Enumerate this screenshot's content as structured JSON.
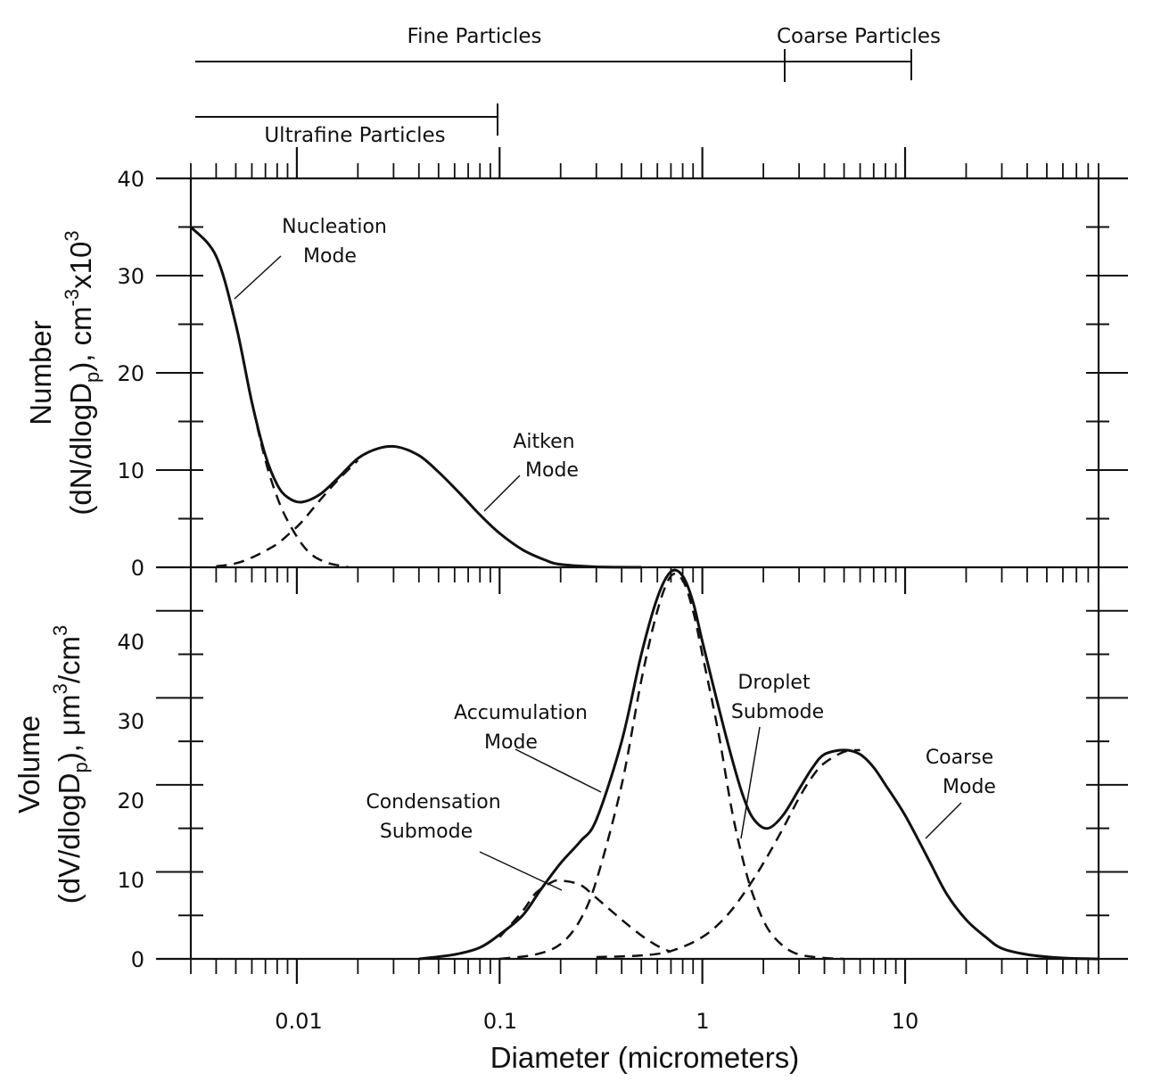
{
  "chart_data": [
    {
      "type": "line",
      "panel": "top",
      "x_scale": "log",
      "xlim": [
        0.003,
        90
      ],
      "ylim": [
        0,
        40
      ],
      "yticks": [
        0,
        10,
        20,
        30,
        40
      ],
      "ylabel_line1": "Number",
      "ylabel_line2": "(dN/dlogD",
      "ylabel_sub": "p",
      "ylabel_rest": "), cm",
      "ylabel_sup1": "-3",
      "ylabel_mid": "x10",
      "ylabel_sup2": "3",
      "series": [
        {
          "style": "solid",
          "x": [
            0.003,
            0.004,
            0.005,
            0.006,
            0.007,
            0.008,
            0.009,
            0.0105,
            0.013,
            0.016,
            0.02,
            0.025,
            0.031,
            0.04,
            0.05,
            0.065,
            0.08,
            0.1,
            0.13,
            0.17,
            0.2,
            0.3,
            0.5
          ],
          "y": [
            35,
            32,
            25,
            17,
            11.5,
            8.5,
            7.2,
            6.7,
            7.5,
            9.2,
            11.2,
            12.2,
            12.4,
            11.5,
            9.8,
            7.4,
            5.4,
            3.5,
            1.8,
            0.7,
            0.3,
            0.05,
            0
          ]
        },
        {
          "style": "dashed",
          "x": [
            0.003,
            0.004,
            0.005,
            0.006,
            0.007,
            0.008,
            0.009,
            0.0105,
            0.012,
            0.014,
            0.016,
            0.018
          ],
          "y": [
            35,
            32,
            25,
            17,
            11,
            7.2,
            4.8,
            2.5,
            1.2,
            0.5,
            0.2,
            0
          ]
        },
        {
          "style": "dashed",
          "x": [
            0.004,
            0.005,
            0.006,
            0.007,
            0.008,
            0.009,
            0.0105,
            0.013,
            0.016,
            0.02
          ],
          "y": [
            0.1,
            0.4,
            1.0,
            1.7,
            2.4,
            3.3,
            4.6,
            6.9,
            9.0,
            11.0
          ]
        }
      ],
      "annotations": [
        {
          "lines": [
            "Nucleation",
            "Mode"
          ]
        },
        {
          "lines": [
            "Aitken",
            "Mode"
          ]
        }
      ]
    },
    {
      "type": "line",
      "panel": "bottom",
      "x_scale": "log",
      "xlim": [
        0.003,
        90
      ],
      "ylim": [
        0,
        45
      ],
      "yticks": [
        0,
        10,
        20,
        30,
        40
      ],
      "ylabel_line1": "Volume",
      "ylabel_line2": "(dV/dlogD",
      "ylabel_sub": "p",
      "ylabel_rest": "), μm",
      "ylabel_sup1": "3",
      "ylabel_mid": "/cm",
      "ylabel_sup2": "3",
      "series": [
        {
          "style": "solid",
          "x": [
            0.04,
            0.06,
            0.08,
            0.1,
            0.13,
            0.16,
            0.2,
            0.25,
            0.3,
            0.4,
            0.5,
            0.6,
            0.7,
            0.8,
            0.9,
            1.0,
            1.2,
            1.4,
            1.6,
            1.8,
            2.1,
            2.5,
            3,
            3.5,
            4,
            5,
            6,
            7,
            8,
            10,
            13,
            16,
            20,
            25,
            30,
            40,
            60,
            90
          ],
          "y": [
            0,
            0.5,
            1.3,
            2.8,
            5,
            8,
            11,
            13.5,
            16,
            25,
            35,
            41.5,
            44.5,
            44,
            41,
            36.5,
            29,
            23,
            18.5,
            16,
            15,
            16.5,
            19.5,
            22,
            23.5,
            24,
            23.5,
            22,
            20,
            16.5,
            11.5,
            7.5,
            4.5,
            2.5,
            1.2,
            0.5,
            0.1,
            0
          ]
        },
        {
          "style": "dashed",
          "x": [
            0.1,
            0.13,
            0.15,
            0.18,
            0.2,
            0.25,
            0.3,
            0.4,
            0.5,
            0.6,
            0.7
          ],
          "y": [
            2.5,
            5.5,
            7.5,
            8.8,
            9,
            8.5,
            7,
            4.5,
            2.7,
            1.5,
            0.8
          ]
        },
        {
          "style": "dashed",
          "x": [
            0.1,
            0.15,
            0.2,
            0.25,
            0.3,
            0.4,
            0.5,
            0.6,
            0.7,
            0.8,
            0.9,
            1.0,
            1.2,
            1.4,
            1.6,
            1.8,
            2.1,
            2.5,
            3,
            4,
            5
          ],
          "y": [
            0,
            0.5,
            1.7,
            4.5,
            9,
            20,
            32,
            40,
            44,
            43.5,
            40,
            35,
            26,
            17,
            11,
            7,
            3.5,
            1.5,
            0.5,
            0.1,
            0
          ]
        },
        {
          "style": "dashed",
          "x": [
            0.3,
            0.5,
            0.7,
            1.0,
            1.3,
            1.6,
            2.0,
            2.5,
            3,
            3.5,
            4,
            5,
            6
          ],
          "y": [
            0.2,
            0.4,
            0.9,
            2.5,
            4.8,
            7.5,
            11,
            15,
            18.5,
            21,
            22.5,
            23.8,
            24
          ]
        }
      ],
      "annotations": [
        {
          "lines": [
            "Accumulation",
            "Mode"
          ]
        },
        {
          "lines": [
            "Droplet",
            "Submode"
          ]
        },
        {
          "lines": [
            "Coarse",
            "Mode"
          ]
        },
        {
          "lines": [
            "Condensation",
            "Submode"
          ]
        }
      ]
    }
  ],
  "xticks_labeled": [
    {
      "x": 0.01,
      "label": "0.01"
    },
    {
      "x": 0.1,
      "label": "0.1"
    },
    {
      "x": 1,
      "label": "1"
    },
    {
      "x": 10,
      "label": "10"
    }
  ],
  "xlabel": "Diameter (micrometers)",
  "size_ranges": {
    "fine": {
      "label": "Fine Particles",
      "from": 0.003,
      "to": 2.5
    },
    "coarse": {
      "label": "Coarse Particles",
      "from": 2.5,
      "to": 10
    },
    "ultrafine": {
      "label": "Ultrafine Particles",
      "from": 0.003,
      "to": 0.1
    }
  }
}
